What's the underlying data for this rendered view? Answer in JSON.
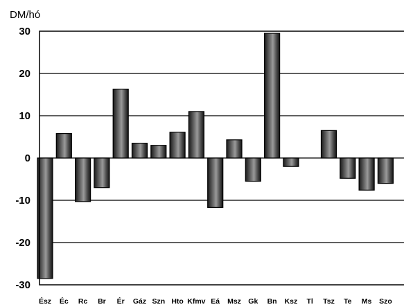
{
  "chart_data": {
    "type": "bar",
    "ylabel": "DM/hó",
    "xlabel": "",
    "title": "",
    "ylim": [
      -30,
      30
    ],
    "yticks": [
      30,
      20,
      10,
      0,
      -10,
      -20,
      -30
    ],
    "grid": true,
    "categories": [
      "Ész",
      "Éc",
      "Rc",
      "Br",
      "Ér",
      "Gáz",
      "Szn",
      "Hto",
      "Kfmv",
      "Eá",
      "Msz",
      "Gk",
      "Bn",
      "Ksz",
      "Tl",
      "Tsz",
      "Te",
      "Ms",
      "Szo"
    ],
    "values": [
      -28.5,
      5.8,
      -10.3,
      -7.0,
      16.3,
      3.5,
      3.0,
      6.1,
      11.0,
      -11.7,
      4.3,
      -5.5,
      29.5,
      -2.0,
      0,
      6.5,
      -4.8,
      -7.6,
      -6.0
    ],
    "bar_color": "#3a3a3a"
  }
}
